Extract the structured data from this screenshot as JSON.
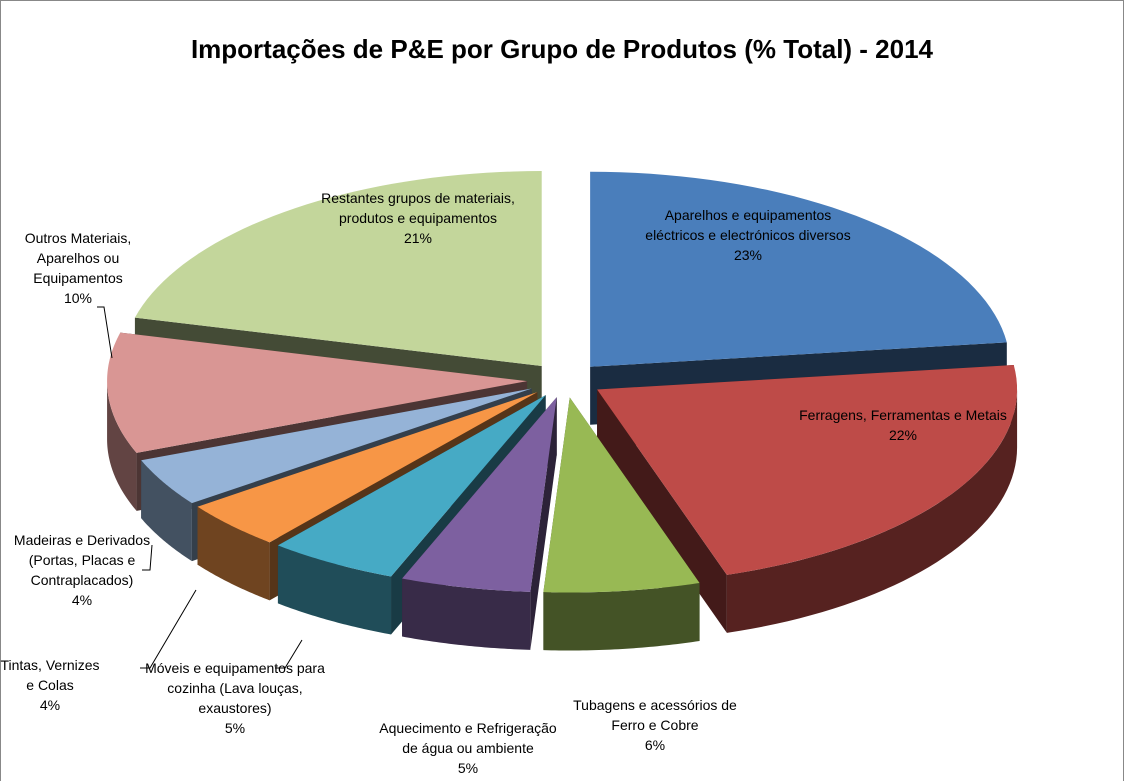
{
  "chart_data": {
    "type": "pie3d",
    "title": "Importações de P&E por Grupo de Produtos (% Total) - 2014",
    "categories": [
      "Aparelhos e equipamentos eléctricos e electrónicos diversos",
      "Ferragens, Ferramentas e Metais",
      "Tubagens e acessórios de Ferro e Cobre",
      "Aquecimento e Refrigeração de água ou ambiente",
      "Móveis e equipamentos para cozinha (Lava louças, exaustores)",
      "Tintas, Vernizes e Colas",
      "Madeiras e Derivados (Portas, Placas e Contraplacados)",
      "Outros Materiais, Aparelhos ou Equipamentos",
      "Restantes grupos de materiais, produtos e equipamentos"
    ],
    "values": [
      23,
      22,
      6,
      5,
      5,
      4,
      4,
      10,
      21
    ],
    "value_labels": [
      "23%",
      "22%",
      "6%",
      "5%",
      "5%",
      "4%",
      "4%",
      "10%",
      "21%"
    ],
    "colors": [
      "#4a7ebb",
      "#be4b48",
      "#98b954",
      "#7d60a0",
      "#46aac5",
      "#f79646",
      "#95b3d7",
      "#d99694",
      "#c3d69b"
    ]
  }
}
